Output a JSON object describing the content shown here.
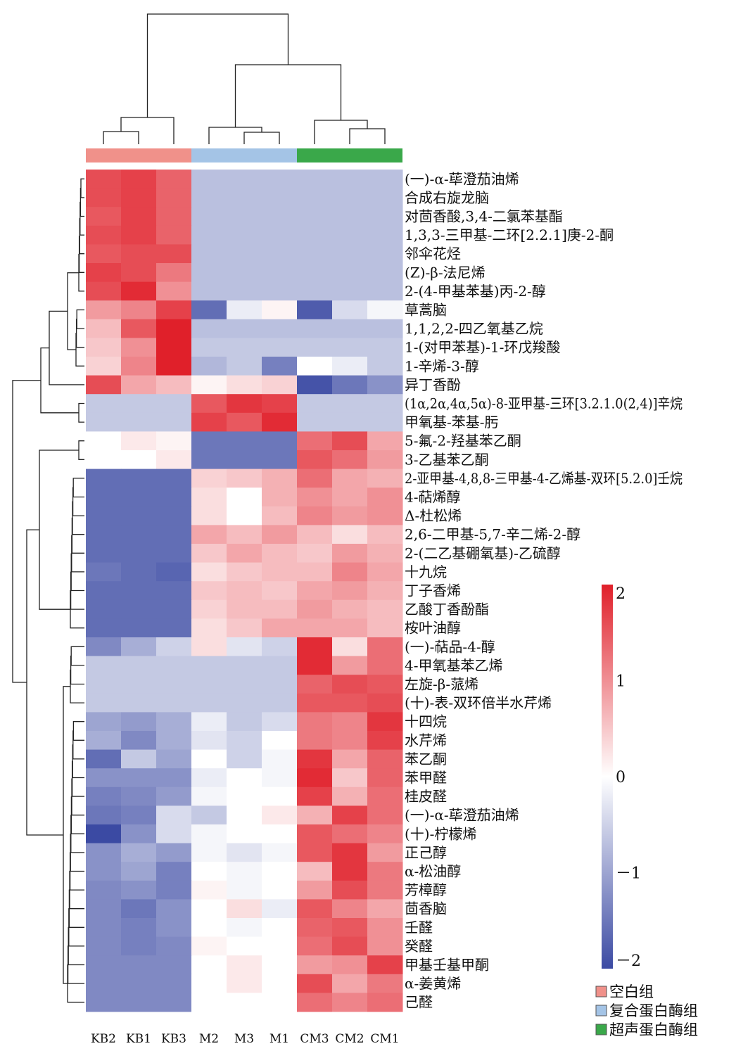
{
  "chart_data": {
    "type": "heatmap",
    "title": "",
    "columns": [
      "KB2",
      "KB1",
      "KB3",
      "M2",
      "M3",
      "M1",
      "CM3",
      "CM2",
      "CM1"
    ],
    "column_groups": [
      {
        "name": "空白组",
        "color": "#f0918a",
        "columns": [
          "KB2",
          "KB1",
          "KB3"
        ]
      },
      {
        "name": "复合蛋白酶组",
        "color": "#a4c4e6",
        "columns": [
          "M2",
          "M3",
          "M1"
        ]
      },
      {
        "name": "超声蛋白酶组",
        "color": "#3aa84a",
        "columns": [
          "CM3",
          "CM2",
          "CM1"
        ]
      }
    ],
    "rows": [
      "(一)-α-荜澄茄油烯",
      "合成右旋龙脑",
      "对茴香酸,3,4-二氯苯基酯",
      "1,3,3-三甲基-二环[2.2.1]庚-2-酮",
      "邻伞花烃",
      "(Z)-β-法尼烯",
      "2-(4-甲基苯基)丙-2-醇",
      "草蒿脑",
      "1,1,2,2-四乙氧基乙烷",
      "1-(对甲苯基)-1-环戊羧酸",
      "1-辛烯-3-醇",
      "异丁香酚",
      "(1α,2α,4α,5α)-8-亚甲基-三环[3.2.1.0(2,4)]辛烷",
      "甲氧基-苯基-肟",
      "5-氟-2-羟基苯乙酮",
      "3-乙基苯乙酮",
      "2-亚甲基-4,8,8-三甲基-4-乙烯基-双环[5.2.0]壬烷",
      "4-萜烯醇",
      "Δ-杜松烯",
      "2,6-二甲基-5,7-辛二烯-2-醇",
      "2-(二乙基硼氧基)-乙硫醇",
      "十九烷",
      "丁子香烯",
      "乙酸丁香酚酯",
      "桉叶油醇",
      "(一)-萜品-4-醇",
      "4-甲氧基苯乙烯",
      "左旋-β-蒎烯",
      "(十)-表-双环倍半水芹烯",
      "十四烷",
      "水芹烯",
      "苯乙酮",
      "苯甲醛",
      "桂皮醛",
      "(一)-α-荜澄茄油烯",
      "(十)-柠檬烯",
      "正己醇",
      "α-松油醇",
      "芳樟醇",
      "茴香脑",
      "壬醛",
      "癸醛",
      "甲基壬基甲酮",
      "α-姜黄烯",
      "己醛"
    ],
    "values": [
      [
        1.6,
        1.7,
        1.4,
        -0.7,
        -0.7,
        -0.7,
        -0.7,
        -0.7,
        -0.7
      ],
      [
        1.6,
        1.7,
        1.4,
        -0.7,
        -0.7,
        -0.7,
        -0.7,
        -0.7,
        -0.7
      ],
      [
        1.5,
        1.7,
        1.4,
        -0.7,
        -0.7,
        -0.7,
        -0.7,
        -0.7,
        -0.7
      ],
      [
        1.6,
        1.7,
        1.4,
        -0.7,
        -0.7,
        -0.7,
        -0.7,
        -0.7,
        -0.7
      ],
      [
        1.5,
        1.6,
        1.6,
        -0.7,
        -0.7,
        -0.7,
        -0.7,
        -0.7,
        -0.7
      ],
      [
        1.7,
        1.6,
        1.2,
        -0.7,
        -0.7,
        -0.7,
        -0.7,
        -0.7,
        -0.7
      ],
      [
        1.6,
        1.9,
        1.0,
        -0.7,
        -0.7,
        -0.7,
        -0.7,
        -0.7,
        -0.7
      ],
      [
        0.9,
        1.1,
        1.7,
        -1.6,
        -0.2,
        0.1,
        -1.8,
        -0.4,
        -0.1
      ],
      [
        0.6,
        1.5,
        2.0,
        -0.7,
        -0.7,
        -0.7,
        -0.7,
        -0.7,
        -0.7
      ],
      [
        0.5,
        1.0,
        2.0,
        -0.6,
        -0.6,
        -0.6,
        -0.6,
        -0.6,
        -0.6
      ],
      [
        0.4,
        1.1,
        2.0,
        -0.8,
        -0.6,
        -1.4,
        0.0,
        -0.2,
        -0.6
      ],
      [
        1.6,
        0.8,
        0.6,
        0.1,
        0.3,
        0.4,
        -1.9,
        -1.5,
        -1.2
      ],
      [
        -0.6,
        -0.6,
        -0.6,
        1.5,
        1.8,
        1.7,
        -0.6,
        -0.6,
        -0.6
      ],
      [
        -0.6,
        -0.6,
        -0.6,
        1.7,
        1.5,
        1.9,
        -0.6,
        -0.6,
        -0.6
      ],
      [
        0.0,
        0.2,
        0.1,
        -1.5,
        -1.5,
        -1.5,
        1.3,
        1.6,
        0.8
      ],
      [
        0.0,
        0.0,
        0.2,
        -1.5,
        -1.5,
        -1.5,
        1.5,
        1.3,
        0.9
      ],
      [
        -1.6,
        -1.6,
        -1.6,
        0.4,
        0.5,
        0.7,
        1.3,
        0.8,
        0.7
      ],
      [
        -1.6,
        -1.6,
        -1.6,
        0.3,
        0.0,
        0.7,
        1.0,
        0.8,
        1.0
      ],
      [
        -1.6,
        -1.6,
        -1.6,
        0.3,
        0.0,
        0.6,
        1.1,
        0.9,
        1.0
      ],
      [
        -1.6,
        -1.6,
        -1.6,
        0.8,
        0.6,
        0.9,
        0.6,
        0.3,
        0.6
      ],
      [
        -1.6,
        -1.6,
        -1.6,
        0.5,
        0.8,
        0.6,
        0.5,
        0.9,
        0.7
      ],
      [
        -1.5,
        -1.6,
        -1.7,
        0.3,
        0.5,
        0.6,
        0.6,
        1.1,
        0.8
      ],
      [
        -1.6,
        -1.6,
        -1.6,
        0.5,
        0.6,
        0.5,
        0.8,
        0.9,
        0.7
      ],
      [
        -1.6,
        -1.6,
        -1.6,
        0.4,
        0.6,
        0.6,
        0.9,
        0.7,
        0.6
      ],
      [
        -1.6,
        -1.6,
        -1.6,
        0.3,
        0.5,
        0.8,
        0.8,
        0.8,
        0.6
      ],
      [
        -1.3,
        -0.9,
        -0.5,
        0.3,
        -0.3,
        -0.5,
        1.9,
        0.3,
        1.3
      ],
      [
        -0.6,
        -0.6,
        -0.6,
        -0.6,
        -0.6,
        -0.6,
        1.9,
        0.9,
        1.3
      ],
      [
        -0.6,
        -0.6,
        -0.6,
        -0.6,
        -0.6,
        -0.6,
        1.4,
        1.6,
        1.5
      ],
      [
        -0.6,
        -0.6,
        -0.6,
        -0.6,
        -0.6,
        -0.6,
        1.5,
        1.5,
        1.6
      ],
      [
        -1.0,
        -1.1,
        -0.9,
        -0.2,
        -0.6,
        -0.4,
        1.2,
        1.1,
        1.8
      ],
      [
        -0.9,
        -1.3,
        -0.9,
        -0.3,
        -0.5,
        0.0,
        1.2,
        1.1,
        1.7
      ],
      [
        -1.6,
        -0.6,
        -1.0,
        0.0,
        -0.5,
        -0.1,
        1.8,
        0.8,
        1.4
      ],
      [
        -1.2,
        -1.2,
        -1.2,
        -0.2,
        0.0,
        -0.1,
        1.9,
        0.5,
        1.4
      ],
      [
        -1.4,
        -1.3,
        -1.1,
        -0.1,
        0.0,
        0.0,
        1.7,
        0.7,
        1.3
      ],
      [
        -1.5,
        -1.4,
        -0.4,
        -0.6,
        0.0,
        0.2,
        0.7,
        1.7,
        1.3
      ],
      [
        -2.0,
        -1.2,
        -0.4,
        -0.1,
        0.0,
        0.0,
        1.5,
        1.3,
        1.1
      ],
      [
        -1.2,
        -0.9,
        -1.1,
        -0.1,
        -0.3,
        -0.1,
        1.5,
        1.8,
        0.9
      ],
      [
        -1.2,
        -1.0,
        -1.4,
        0.0,
        -0.1,
        0.0,
        0.6,
        1.8,
        1.2
      ],
      [
        -1.3,
        -1.2,
        -1.4,
        0.1,
        -0.1,
        0.0,
        0.9,
        1.6,
        1.2
      ],
      [
        -1.3,
        -1.5,
        -1.2,
        0.0,
        0.3,
        -0.2,
        1.5,
        1.1,
        0.8
      ],
      [
        -1.3,
        -1.4,
        -1.2,
        0.0,
        -0.1,
        0.0,
        1.4,
        1.5,
        1.0
      ],
      [
        -1.3,
        -1.4,
        -1.3,
        0.1,
        0.0,
        0.0,
        1.3,
        1.6,
        1.0
      ],
      [
        -1.3,
        -1.3,
        -1.3,
        0.0,
        0.2,
        0.0,
        0.9,
        1.0,
        1.7
      ],
      [
        -1.3,
        -1.3,
        -1.3,
        0.0,
        0.2,
        0.0,
        1.6,
        0.8,
        1.2
      ],
      [
        -1.3,
        -1.3,
        -1.3,
        0.0,
        0.0,
        0.0,
        1.3,
        1.1,
        1.3
      ]
    ],
    "colorbar": {
      "min": -2,
      "max": 2,
      "ticks": [
        2,
        1,
        0,
        -1,
        -2
      ],
      "tick_labels": [
        "2",
        "1",
        "0",
        "－1",
        "－2"
      ]
    },
    "colors": {
      "low": "#3b4aa3",
      "mid": "#ffffff",
      "high": "#e0202a"
    },
    "legend": [
      "空白组",
      "复合蛋白酶组",
      "超声蛋白酶组"
    ]
  }
}
